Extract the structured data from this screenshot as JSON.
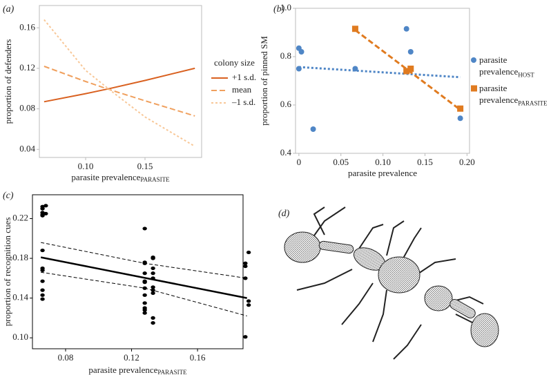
{
  "chart_data": [
    {
      "type": "line",
      "panel_label": "(a)",
      "ylabel": "proportion of defenders",
      "xlabel": "parasite prevalence",
      "xlabel_sub": "PARASITE",
      "legend_title": "colony size",
      "xlim": [
        0.061,
        0.1977
      ],
      "ylim": [
        0.032,
        0.182
      ],
      "xticks": [
        {
          "value": 0.1,
          "label": "0.10"
        },
        0.15
      ],
      "yticks": [
        {
          "value": 0.04,
          "label": "0.04"
        },
        {
          "value": 0.08,
          "label": "0.08"
        },
        {
          "value": 0.12,
          "label": "0.12"
        },
        0.16
      ],
      "x": [
        0.065,
        0.1,
        0.12,
        0.15,
        0.192
      ],
      "series": [
        {
          "name": "+1 s.d.",
          "color": "#d9601f",
          "linestyle": "solid",
          "values": [
            0.087,
            0.095,
            0.1,
            0.108,
            0.12
          ]
        },
        {
          "name": "mean",
          "color": "#f0a05e",
          "linestyle": "dashed",
          "values": [
            0.122,
            0.107,
            0.099,
            0.088,
            0.073
          ]
        },
        {
          "name": "–1 s.d.",
          "color": "#f8c797",
          "linestyle": "dotted",
          "values": [
            0.168,
            0.118,
            0.099,
            0.072,
            0.043
          ]
        }
      ]
    },
    {
      "type": "scatter",
      "panel_label": "(b)",
      "ylabel": "proportion of pinned SM",
      "xlabel": "parasite prevalence",
      "xlim": [
        -0.004,
        0.203
      ],
      "ylim": [
        0.4,
        1.0
      ],
      "xticks": [
        0,
        0.05,
        {
          "value": 0.1,
          "label": "0.10"
        },
        0.15,
        {
          "value": 0.2,
          "label": "0.20"
        }
      ],
      "yticks": [
        0.4,
        0.6,
        0.8,
        {
          "value": 1.0,
          "label": "1.0"
        }
      ],
      "series": [
        {
          "name": "parasite prevalence",
          "name_sub": "HOST",
          "color": "#4f86c6",
          "marker": "circle",
          "linestyle": "dotted",
          "x": [
            0,
            0.003,
            0,
            0.017,
            0.067,
            0.128,
            0.133,
            0.128,
            0.192
          ],
          "values": [
            0.835,
            0.82,
            0.75,
            0.5,
            0.75,
            0.915,
            0.82,
            0.74,
            0.545
          ],
          "trend": {
            "x": [
              0,
              0.192
            ],
            "values": [
              0.757,
              0.715
            ]
          }
        },
        {
          "name": "parasite prevalence",
          "name_sub": "PARASITE",
          "color": "#e07b20",
          "marker": "square",
          "linestyle": "dashed",
          "x": [
            0.067,
            0.128,
            0.133,
            0.192
          ],
          "values": [
            0.915,
            0.74,
            0.75,
            0.585
          ],
          "trend": {
            "x": [
              0.067,
              0.192
            ],
            "values": [
              0.91,
              0.58
            ]
          }
        }
      ]
    },
    {
      "type": "scatter",
      "panel_label": "(c)",
      "ylabel": "proportion of recognition cues",
      "xlabel": "parasite prevalence",
      "xlabel_sub": "PARASITE",
      "xlim": [
        0.0599,
        0.1876
      ],
      "ylim": [
        0.089,
        0.244
      ],
      "xticks": [
        0.08,
        0.12,
        0.16
      ],
      "yticks": [
        {
          "value": 0.1,
          "label": "0.10"
        },
        0.14,
        0.18,
        0.22
      ],
      "color": "#000000",
      "x": [
        0.066,
        0.066,
        0.066,
        0.066,
        0.066,
        0.066,
        0.066,
        0.066,
        0.066,
        0.066,
        0.066,
        0.066,
        0.068,
        0.068,
        0.128,
        0.128,
        0.128,
        0.128,
        0.128,
        0.128,
        0.128,
        0.128,
        0.128,
        0.128,
        0.128,
        0.128,
        0.133,
        0.133,
        0.133,
        0.133,
        0.133,
        0.133,
        0.133,
        0.133,
        0.133,
        0.133,
        0.189,
        0.189,
        0.189,
        0.191,
        0.191,
        0.191,
        0.189
      ],
      "values": [
        0.23,
        0.232,
        0.226,
        0.224,
        0.223,
        0.188,
        0.17,
        0.168,
        0.157,
        0.148,
        0.143,
        0.139,
        0.233,
        0.225,
        0.21,
        0.176,
        0.175,
        0.165,
        0.157,
        0.156,
        0.15,
        0.143,
        0.135,
        0.13,
        0.128,
        0.125,
        0.181,
        0.18,
        0.17,
        0.165,
        0.16,
        0.151,
        0.148,
        0.145,
        0.12,
        0.115,
        0.175,
        0.172,
        0.16,
        0.186,
        0.137,
        0.133,
        0.101
      ],
      "fit": {
        "x": [
          0.065,
          0.19
        ],
        "values": [
          0.181,
          0.14
        ]
      },
      "ci_upper": {
        "x": [
          0.065,
          0.128,
          0.19
        ],
        "values": [
          0.196,
          0.175,
          0.16
        ]
      },
      "ci_lower": {
        "x": [
          0.065,
          0.128,
          0.19
        ],
        "values": [
          0.166,
          0.15,
          0.122
        ]
      }
    },
    {
      "type": "image",
      "panel_label": "(d)"
    }
  ]
}
